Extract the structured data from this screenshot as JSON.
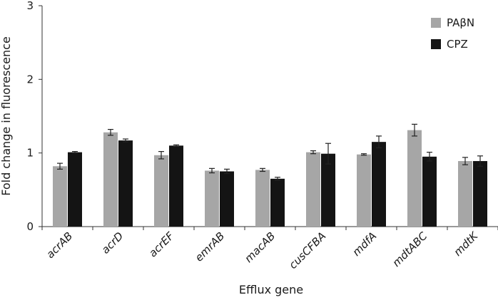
{
  "chart_data": {
    "type": "bar",
    "title": "",
    "xlabel": "Efflux gene",
    "ylabel": "Fold change in fluorescence",
    "ylim": [
      0,
      3
    ],
    "yticks": [
      "0",
      "1",
      "2",
      "3"
    ],
    "categories": [
      "acrAB",
      "acrD",
      "acrEF",
      "emrAB",
      "macAB",
      "cusCFBA",
      "mdfA",
      "mdtABC",
      "mdtK"
    ],
    "series": [
      {
        "name": "PAβN",
        "color": "#a6a6a6",
        "values": [
          0.82,
          1.28,
          0.97,
          0.76,
          0.77,
          1.01,
          0.98,
          1.31,
          0.89
        ],
        "errors": [
          0.04,
          0.04,
          0.05,
          0.03,
          0.02,
          0.02,
          0.01,
          0.08,
          0.05
        ]
      },
      {
        "name": "CPZ",
        "color": "#141414",
        "values": [
          1.01,
          1.17,
          1.1,
          0.75,
          0.65,
          0.99,
          1.15,
          0.95,
          0.89
        ],
        "errors": [
          0.01,
          0.02,
          0.01,
          0.03,
          0.02,
          0.14,
          0.08,
          0.06,
          0.07
        ]
      }
    ],
    "grid": false,
    "legend_position": "top-right"
  }
}
